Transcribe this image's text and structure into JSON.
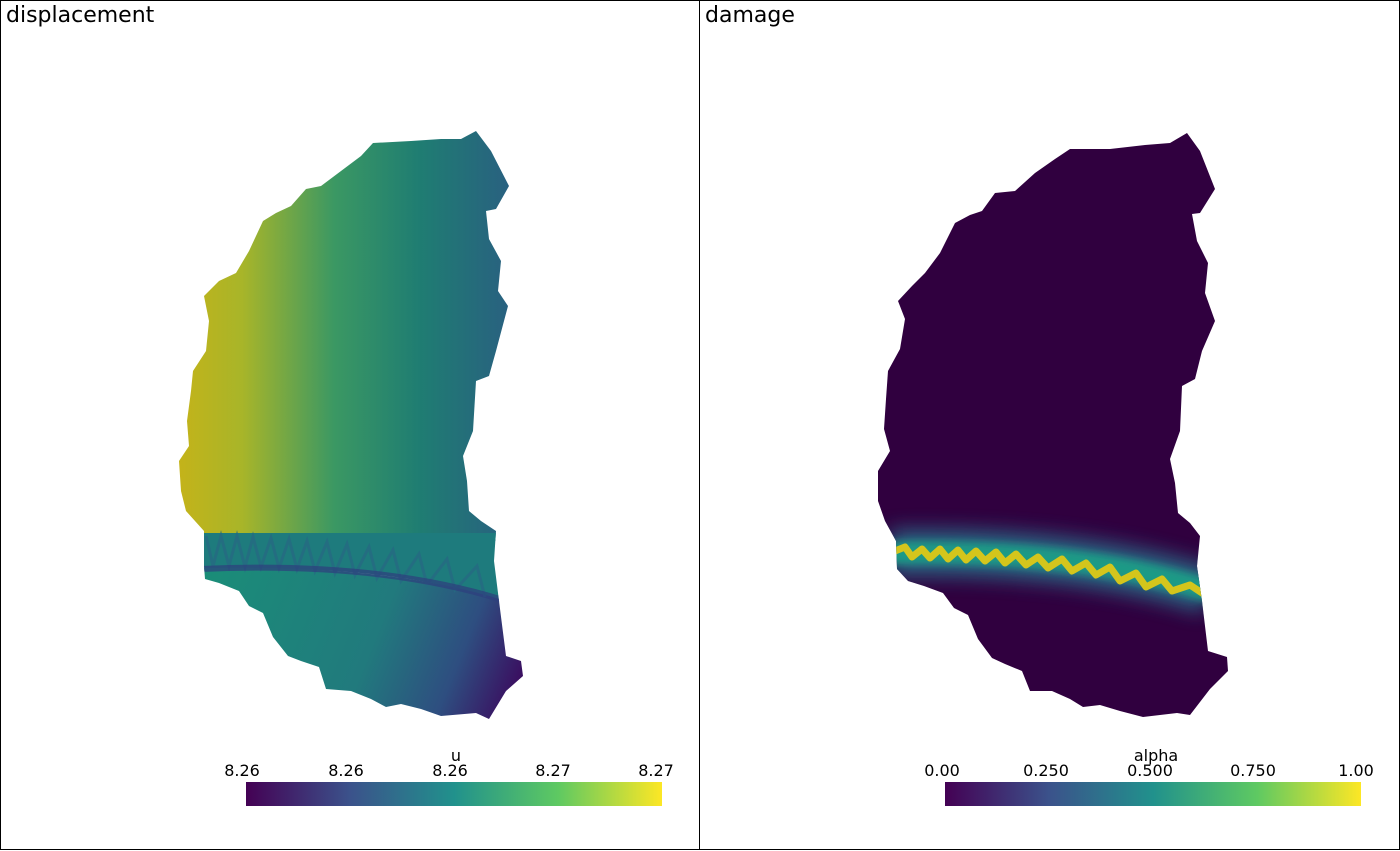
{
  "panels": [
    {
      "title": "displacement",
      "colorbar": {
        "title": "u",
        "ticks": [
          "8.26",
          "8.26",
          "8.26",
          "8.27",
          "8.27"
        ],
        "colormap": "viridis"
      }
    },
    {
      "title": "damage",
      "colorbar": {
        "title": "alpha",
        "ticks": [
          "0.00",
          "0.250",
          "0.500",
          "0.750",
          "1.00"
        ],
        "colormap": "viridis"
      }
    }
  ],
  "colors": {
    "viridis_0": "#440154",
    "viridis_25": "#3b528b",
    "viridis_50": "#21918c",
    "viridis_75": "#5ec962",
    "viridis_100": "#fde725",
    "background": "#ffffff",
    "damage_low": "#30003f",
    "damage_band": "#d6c51a"
  }
}
